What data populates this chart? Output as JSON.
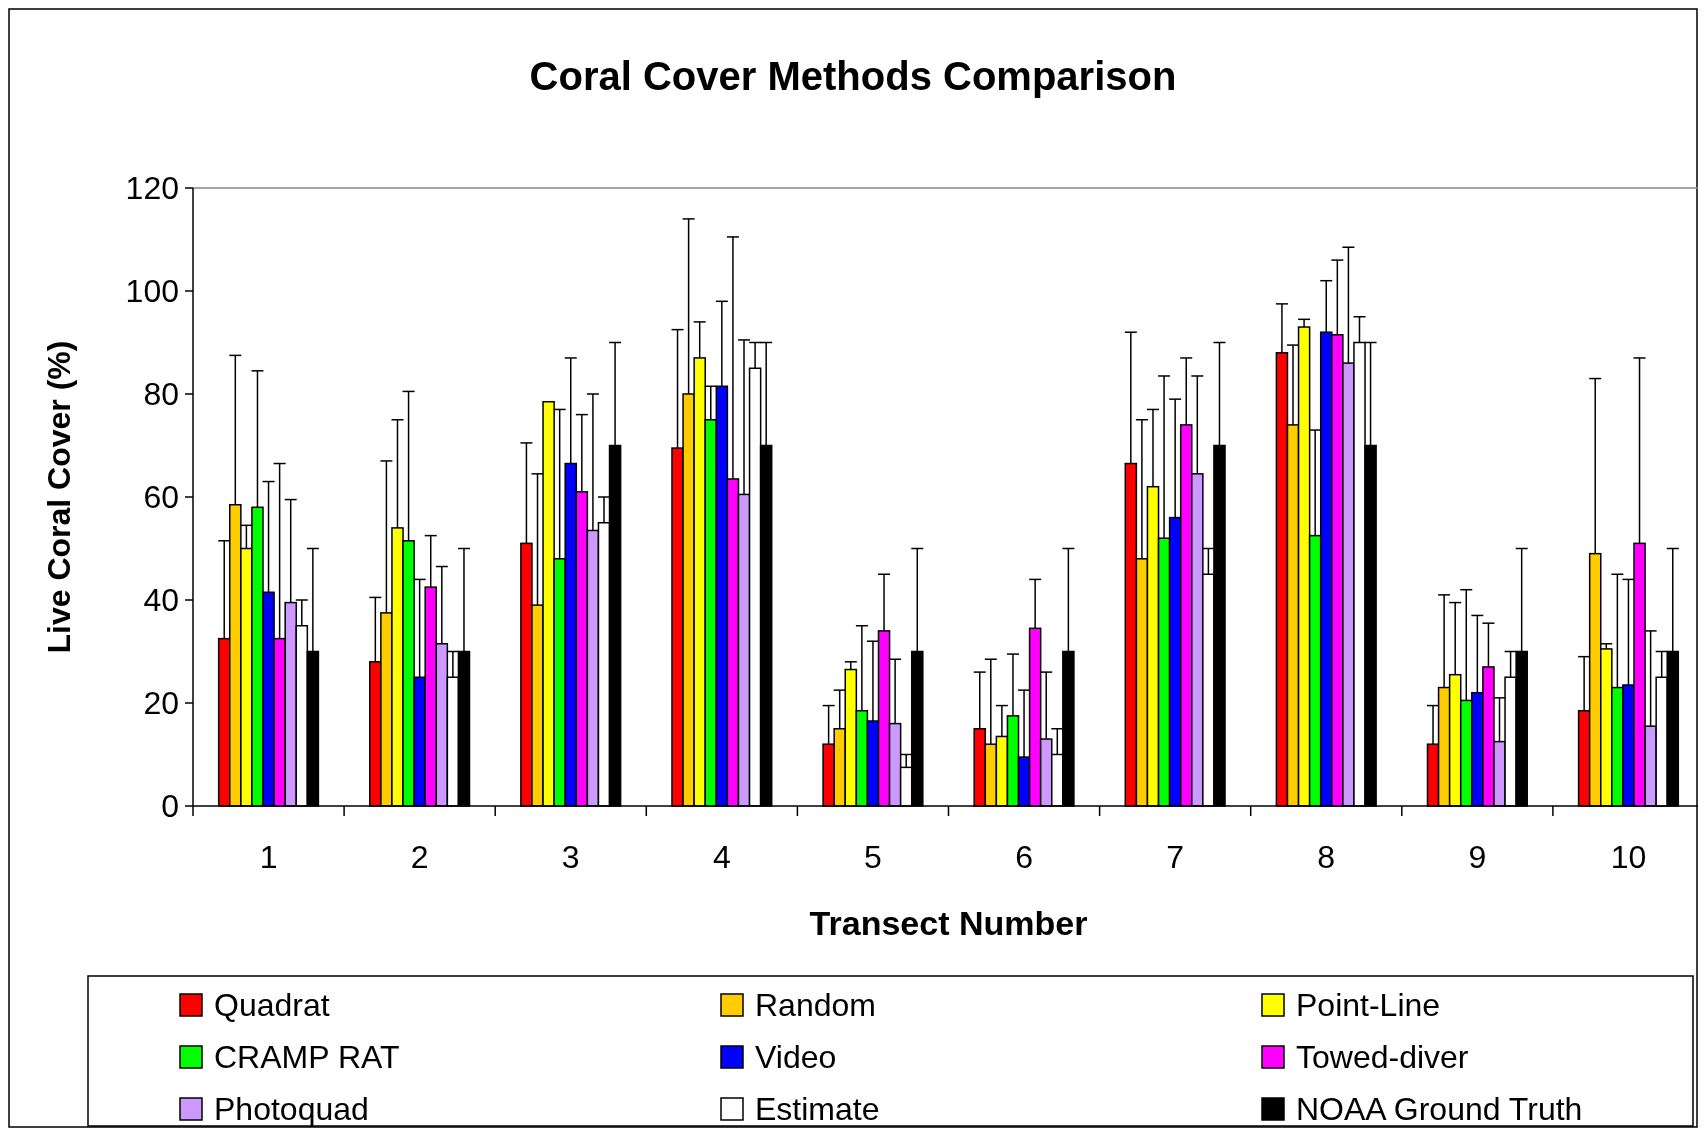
{
  "chart_data": {
    "type": "bar",
    "title": "Coral Cover Methods Comparison",
    "xlabel": "Transect Number",
    "ylabel": "Live Coral Cover (%)",
    "categories": [
      "1",
      "2",
      "3",
      "4",
      "5",
      "6",
      "7",
      "8",
      "9",
      "10"
    ],
    "ylim": [
      0,
      120
    ],
    "yticks": [
      0,
      20,
      40,
      60,
      80,
      100,
      120
    ],
    "grid": false,
    "legend": "bottom",
    "series": [
      {
        "name": "Quadrat",
        "color": "#ff0000",
        "values": [
          32.5,
          28,
          51,
          69.5,
          12,
          15,
          66.5,
          88,
          12,
          18.5
        ],
        "errors": [
          [
            32.5,
            51.5
          ],
          [
            28,
            40.5
          ],
          [
            51,
            70.5
          ],
          [
            69.5,
            92.5
          ],
          [
            12,
            19.5
          ],
          [
            15,
            26
          ],
          [
            66.5,
            92
          ],
          [
            88,
            97.5
          ],
          [
            12,
            19.5
          ],
          [
            18.5,
            29
          ]
        ]
      },
      {
        "name": "Random",
        "color": "#ffcc00",
        "values": [
          58.5,
          37.5,
          39,
          80,
          15,
          12,
          48,
          74,
          23,
          49
        ],
        "errors": [
          [
            58.5,
            87.5
          ],
          [
            37.5,
            67
          ],
          [
            39,
            64.5
          ],
          [
            80,
            114
          ],
          [
            15,
            22.5
          ],
          [
            12,
            28.5
          ],
          [
            48,
            75
          ],
          [
            74,
            89.5
          ],
          [
            23,
            41
          ],
          [
            49,
            83
          ]
        ]
      },
      {
        "name": "Point-Line",
        "color": "#ffff00",
        "values": [
          50,
          54,
          78.5,
          87,
          26.5,
          13.5,
          62,
          93,
          25.5,
          30.5
        ],
        "errors": [
          [
            50,
            54.5
          ],
          [
            54,
            75
          ],
          null,
          [
            87,
            94
          ],
          [
            26.5,
            28
          ],
          [
            13.5,
            19.5
          ],
          [
            62,
            77
          ],
          [
            93,
            94.5
          ],
          [
            25.5,
            39.5
          ],
          [
            30.5,
            31.5
          ]
        ]
      },
      {
        "name": "CRAMP RAT",
        "color": "#00ff00",
        "values": [
          58,
          51.5,
          48,
          75,
          18.5,
          17.5,
          52,
          52.5,
          20.5,
          23
        ],
        "errors": [
          [
            58,
            84.5
          ],
          [
            51.5,
            80.5
          ],
          [
            48,
            77
          ],
          [
            75,
            81.5
          ],
          [
            18.5,
            35
          ],
          [
            17.5,
            29.5
          ],
          [
            52,
            83.5
          ],
          [
            52.5,
            73
          ],
          [
            20.5,
            42
          ],
          [
            23,
            45
          ]
        ]
      },
      {
        "name": "Video",
        "color": "#0000ff",
        "values": [
          41.5,
          25,
          66.5,
          81.5,
          16.5,
          9.5,
          56,
          92,
          22,
          23.5
        ],
        "errors": [
          [
            41.5,
            63
          ],
          [
            25,
            44
          ],
          [
            66.5,
            87
          ],
          [
            81.5,
            98
          ],
          [
            16.5,
            32
          ],
          [
            9.5,
            22.5
          ],
          [
            56,
            79
          ],
          [
            92,
            102
          ],
          [
            22,
            37
          ],
          [
            23.5,
            44
          ]
        ]
      },
      {
        "name": "Towed-diver",
        "color": "#ff00ff",
        "values": [
          32.5,
          42.5,
          61,
          63.5,
          34,
          34.5,
          74,
          91.5,
          27,
          51
        ],
        "errors": [
          [
            32.5,
            66.5
          ],
          [
            42.5,
            52.5
          ],
          [
            61,
            76
          ],
          [
            63.5,
            110.5
          ],
          [
            34,
            45
          ],
          [
            34.5,
            44
          ],
          [
            74,
            87
          ],
          [
            91.5,
            106
          ],
          [
            27,
            35.5
          ],
          [
            51,
            87
          ]
        ]
      },
      {
        "name": "Photoquad",
        "color": "#cc99ff",
        "values": [
          39.5,
          31.5,
          53.5,
          60.5,
          16,
          13,
          64.5,
          86,
          12.5,
          15.5
        ],
        "errors": [
          [
            39.5,
            59.5
          ],
          [
            31.5,
            46.5
          ],
          [
            53.5,
            80
          ],
          [
            60.5,
            90.5
          ],
          [
            16,
            28.5
          ],
          [
            13,
            26
          ],
          [
            64.5,
            83.5
          ],
          [
            86,
            108.5
          ],
          [
            12.5,
            21
          ],
          [
            15.5,
            34
          ]
        ]
      },
      {
        "name": "Estimate",
        "color": "#ffffff",
        "values": [
          35,
          25,
          55,
          85,
          7.5,
          10,
          45,
          90,
          25,
          25
        ],
        "errors": [
          [
            35,
            40
          ],
          [
            25,
            30
          ],
          [
            55,
            60
          ],
          [
            85,
            90
          ],
          [
            7.5,
            10
          ],
          [
            10,
            15
          ],
          [
            45,
            50
          ],
          [
            90,
            95
          ],
          [
            25,
            30
          ],
          [
            25,
            30
          ]
        ]
      },
      {
        "name": "NOAA Ground Truth",
        "color": "#000000",
        "values": [
          30,
          30,
          70,
          70,
          30,
          30,
          70,
          70,
          30,
          30
        ],
        "errors": [
          [
            30,
            50
          ],
          [
            30,
            50
          ],
          [
            70,
            90
          ],
          [
            70,
            90
          ],
          [
            30,
            50
          ],
          [
            30,
            50
          ],
          [
            70,
            90
          ],
          [
            70,
            90
          ],
          [
            30,
            50
          ],
          [
            30,
            50
          ]
        ]
      }
    ]
  }
}
